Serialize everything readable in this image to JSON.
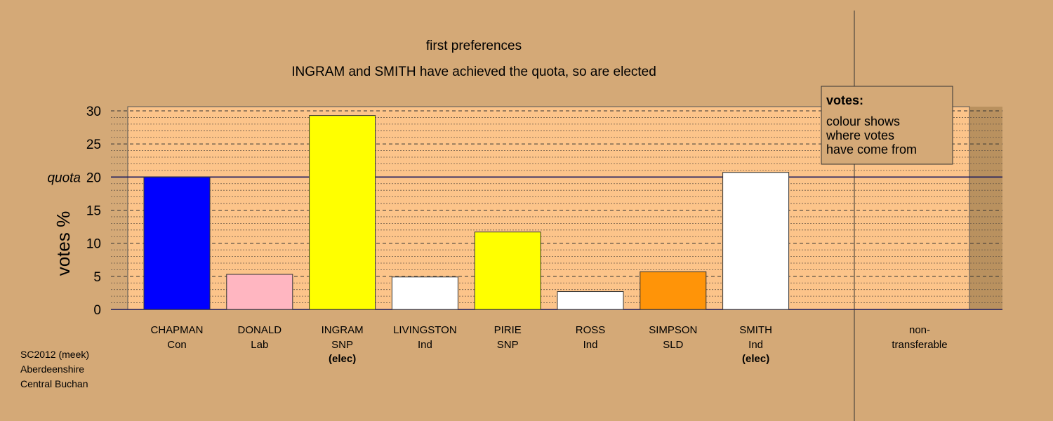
{
  "chart_data": {
    "type": "bar",
    "title": "first preferences",
    "subtitle": "INGRAM and SMITH have achieved the quota, so are elected",
    "ylabel": "votes %",
    "quota_label": "quota",
    "quota": 20,
    "ylim": [
      0,
      30
    ],
    "yticks": [
      0,
      5,
      10,
      15,
      20,
      25,
      30
    ],
    "grid": true,
    "categories": [
      {
        "name": "CHAPMAN",
        "party": "Con",
        "value": 20.0,
        "color": "#0000ff",
        "elected": false
      },
      {
        "name": "DONALD",
        "party": "Lab",
        "value": 5.3,
        "color": "#ffb6c1",
        "elected": false
      },
      {
        "name": "INGRAM",
        "party": "SNP",
        "value": 29.3,
        "color": "#ffff00",
        "elected": true
      },
      {
        "name": "LIVINGSTON",
        "party": "Ind",
        "value": 4.9,
        "color": "#ffffff",
        "elected": false
      },
      {
        "name": "PIRIE",
        "party": "SNP",
        "value": 11.7,
        "color": "#ffff00",
        "elected": false
      },
      {
        "name": "ROSS",
        "party": "Ind",
        "value": 2.7,
        "color": "#ffffff",
        "elected": false
      },
      {
        "name": "SIMPSON",
        "party": "SLD",
        "value": 5.7,
        "color": "#ff9408",
        "elected": false
      },
      {
        "name": "SMITH",
        "party": "Ind",
        "value": 20.7,
        "color": "#ffffff",
        "elected": true
      }
    ],
    "elected_label": "(elec)",
    "nontransferable": {
      "label_line1": "non-",
      "label_line2": "transferable",
      "value": 0
    },
    "legend": {
      "placement": "top-right",
      "title": "votes:",
      "lines": [
        "colour shows",
        "where votes",
        "have come from"
      ]
    }
  },
  "source": {
    "line1": "SC2012 (meek)",
    "line2": "Aberdeenshire",
    "line3": "Central Buchan"
  },
  "colors": {
    "background": "#d4a977",
    "plot_area": "#fcc48a",
    "quota_line": "#1a1a5e"
  }
}
